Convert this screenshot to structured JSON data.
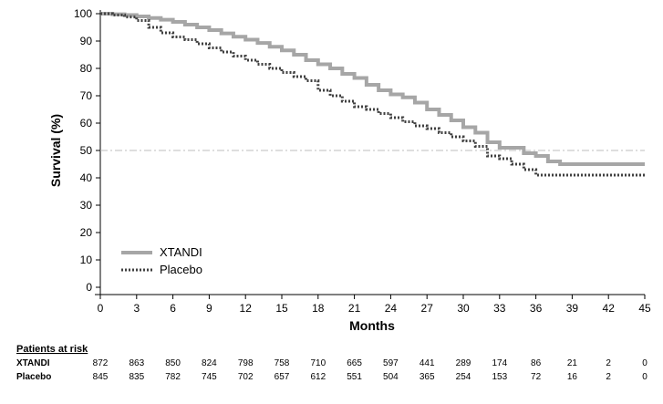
{
  "chart_data": {
    "type": "line",
    "title": "",
    "xlabel": "Months",
    "ylabel": "Survival (%)",
    "xlim": [
      0,
      45
    ],
    "ylim": [
      0,
      100
    ],
    "x_ticks": [
      "0",
      "3",
      "6",
      "9",
      "12",
      "15",
      "18",
      "21",
      "24",
      "27",
      "30",
      "33",
      "36",
      "39",
      "42",
      "45"
    ],
    "y_ticks": [
      "0",
      "10",
      "20",
      "30",
      "40",
      "50",
      "60",
      "70",
      "80",
      "90",
      "100"
    ],
    "reference_line": {
      "y": 50,
      "style": "dash-dot"
    },
    "legend": {
      "placement": "bottom-left"
    },
    "series": [
      {
        "name": "XTANDI",
        "style": "solid",
        "color": "#a6a6a6",
        "x": [
          0,
          1,
          2,
          3,
          4,
          5,
          6,
          7,
          8,
          9,
          10,
          11,
          12,
          13,
          14,
          15,
          16,
          17,
          18,
          19,
          20,
          21,
          22,
          23,
          24,
          25,
          26,
          27,
          28,
          29,
          30,
          31,
          32,
          33,
          34,
          35,
          36,
          37,
          38,
          39,
          40,
          41,
          42,
          43,
          44,
          45
        ],
        "values": [
          100,
          99.8,
          99.5,
          99,
          98.4,
          97.8,
          97,
          96,
          95,
          94,
          92.8,
          91.6,
          90.5,
          89.3,
          87.9,
          86.6,
          85,
          83,
          81.5,
          80,
          78,
          76.5,
          74,
          72,
          70.5,
          69.4,
          67.5,
          65,
          63,
          61,
          58.5,
          56.5,
          53,
          51,
          51,
          49,
          48,
          46,
          45,
          45,
          45,
          45,
          45,
          45,
          45,
          45
        ]
      },
      {
        "name": "Placebo",
        "style": "dotted",
        "color": "#404040",
        "x": [
          0,
          1,
          2,
          3,
          4,
          5,
          6,
          7,
          8,
          9,
          10,
          11,
          12,
          13,
          14,
          15,
          16,
          17,
          18,
          19,
          20,
          21,
          22,
          23,
          24,
          25,
          26,
          27,
          28,
          29,
          30,
          31,
          32,
          33,
          34,
          35,
          36,
          37,
          38,
          39,
          40,
          41,
          42,
          43,
          44,
          45
        ],
        "values": [
          100,
          99.5,
          98.8,
          97.5,
          95,
          93,
          91.5,
          90.5,
          89,
          87.5,
          86,
          84.5,
          83,
          81.5,
          80,
          78.5,
          77,
          75.5,
          72,
          70,
          68,
          66,
          65,
          63.5,
          62,
          60.5,
          59,
          58,
          56.5,
          55,
          53.5,
          51.5,
          48,
          47,
          45,
          43,
          41,
          41,
          41,
          41,
          41,
          41,
          41,
          41,
          41,
          41
        ]
      }
    ],
    "patients_at_risk": {
      "title": "Patients at risk",
      "rows": [
        {
          "label": "XTANDI",
          "values": [
            "872",
            "863",
            "850",
            "824",
            "798",
            "758",
            "710",
            "665",
            "597",
            "441",
            "289",
            "174",
            "86",
            "21",
            "2",
            "0"
          ]
        },
        {
          "label": "Placebo",
          "values": [
            "845",
            "835",
            "782",
            "745",
            "702",
            "657",
            "612",
            "551",
            "504",
            "365",
            "254",
            "153",
            "72",
            "16",
            "2",
            "0"
          ]
        }
      ]
    }
  }
}
